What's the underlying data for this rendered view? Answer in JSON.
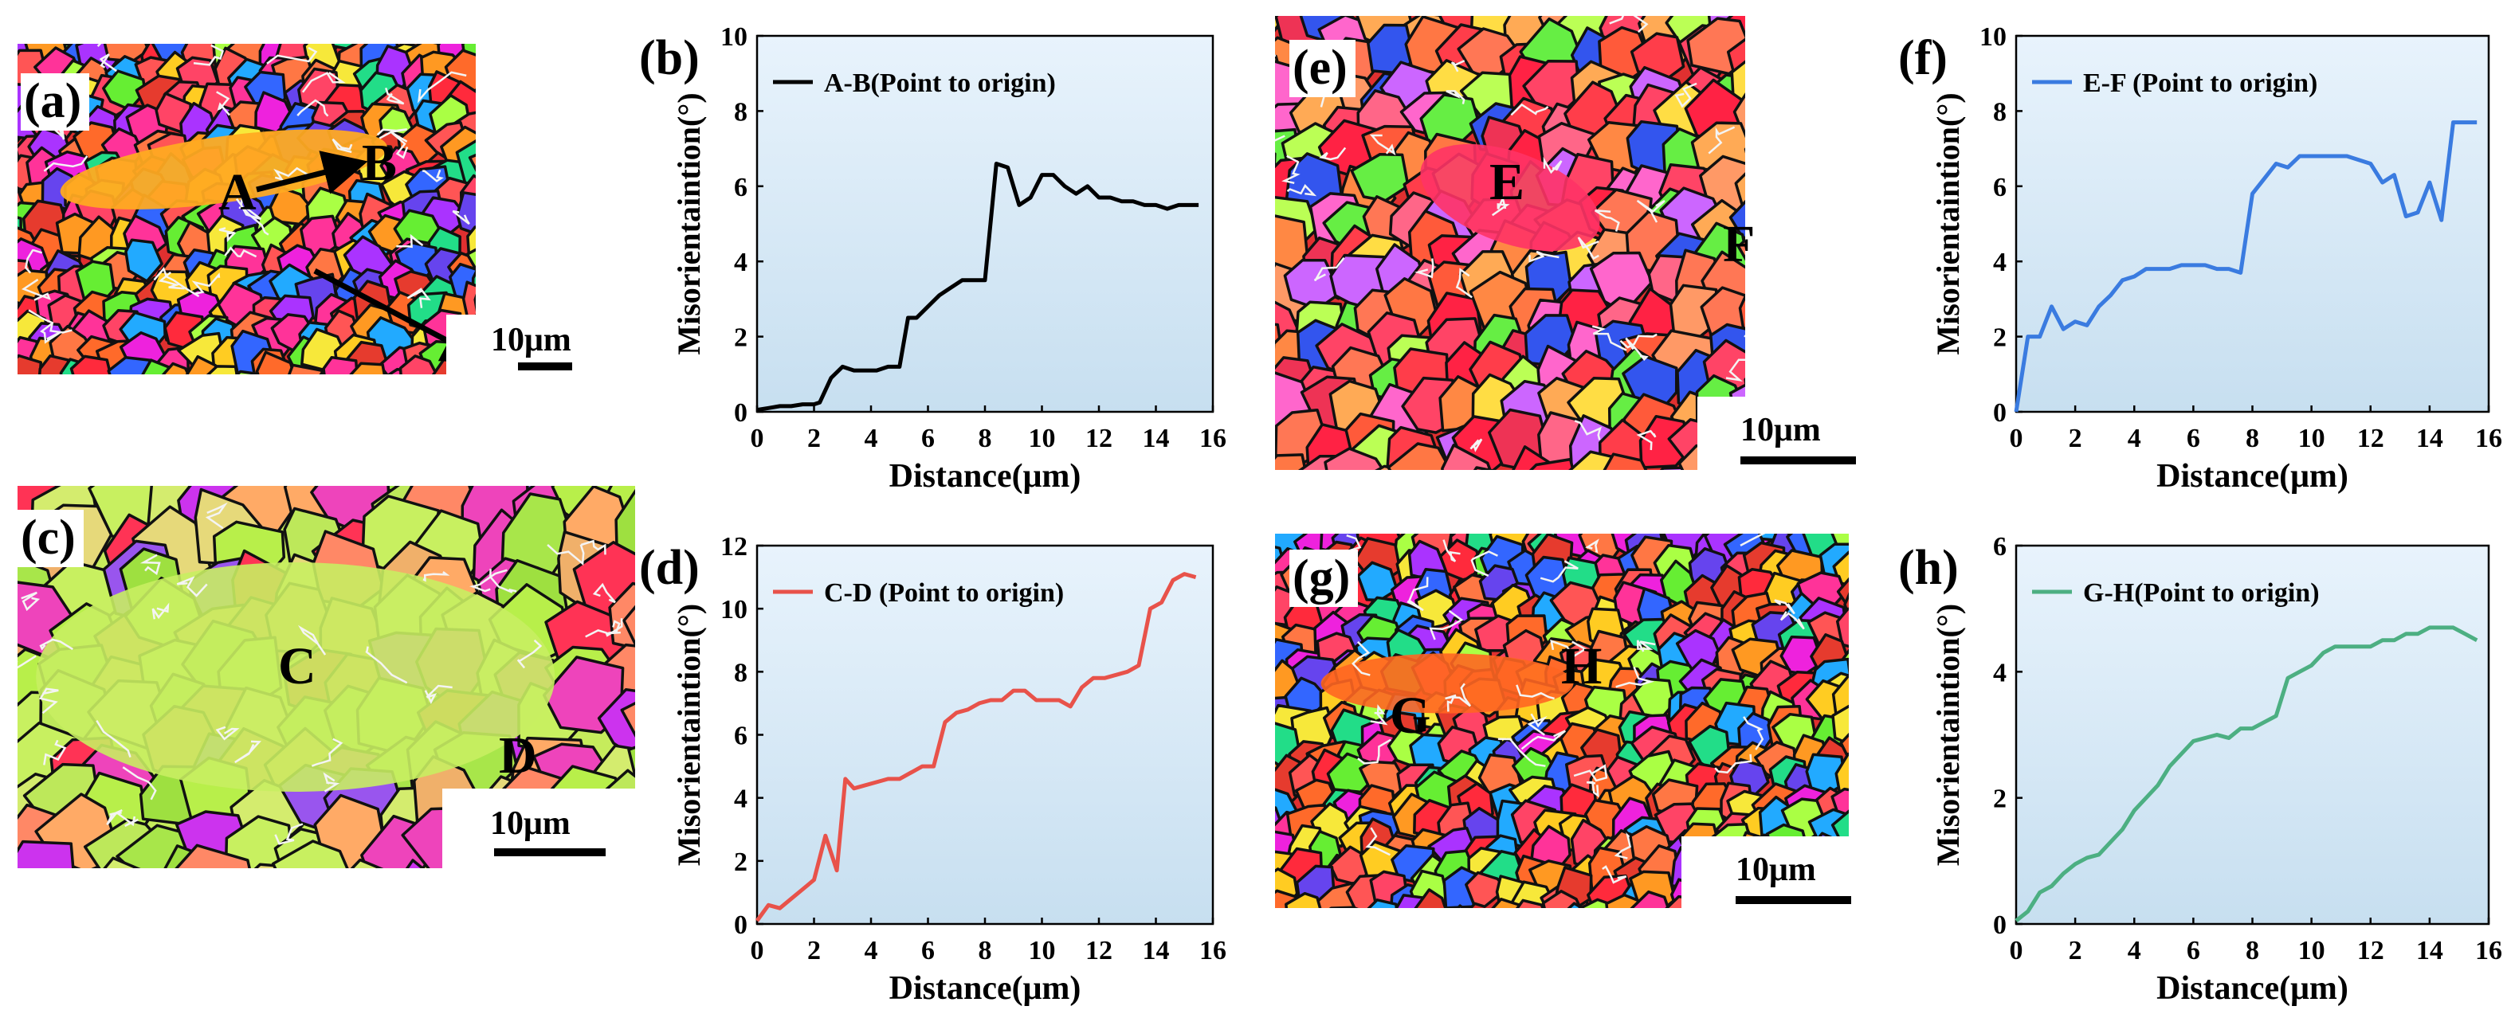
{
  "maps": [
    {
      "id": "a",
      "panel_label": "(a)",
      "scalebar": "10μm",
      "point_start": "A",
      "point_end": "B"
    },
    {
      "id": "c",
      "panel_label": "(c)",
      "scalebar": "10μm",
      "point_start": "C",
      "point_end": "D"
    },
    {
      "id": "e",
      "panel_label": "(e)",
      "scalebar": "10μm",
      "point_start": "E",
      "point_end": "F"
    },
    {
      "id": "g",
      "panel_label": "(g)",
      "scalebar": "10μm",
      "point_start": "G",
      "point_end": "H"
    }
  ],
  "chart_data": [
    {
      "id": "b",
      "panel_label": "(b)",
      "type": "line",
      "legend": "A-B(Point to origin)",
      "color": "#000000",
      "xlabel": "Distance(μm)",
      "ylabel": "Misorientaintion(°)",
      "xlim": [
        0,
        16
      ],
      "ylim": [
        0,
        10
      ],
      "xticks": [
        0,
        2,
        4,
        6,
        8,
        10,
        12,
        14,
        16
      ],
      "yticks": [
        0,
        2,
        4,
        6,
        8,
        10
      ],
      "x": [
        0,
        0.4,
        0.8,
        1.2,
        1.6,
        2.0,
        2.2,
        2.6,
        3.0,
        3.4,
        3.8,
        4.2,
        4.6,
        5.0,
        5.3,
        5.6,
        6.0,
        6.4,
        6.8,
        7.2,
        7.6,
        8.0,
        8.4,
        8.8,
        9.2,
        9.6,
        10.0,
        10.4,
        10.8,
        11.2,
        11.6,
        12.0,
        12.4,
        12.8,
        13.2,
        13.6,
        14.0,
        14.4,
        14.8,
        15.2,
        15.5
      ],
      "y": [
        0.05,
        0.1,
        0.15,
        0.15,
        0.2,
        0.2,
        0.25,
        0.9,
        1.2,
        1.1,
        1.1,
        1.1,
        1.2,
        1.2,
        2.5,
        2.5,
        2.8,
        3.1,
        3.3,
        3.5,
        3.5,
        3.5,
        6.6,
        6.5,
        5.5,
        5.7,
        6.3,
        6.3,
        6.0,
        5.8,
        6.0,
        5.7,
        5.7,
        5.6,
        5.6,
        5.5,
        5.5,
        5.4,
        5.5,
        5.5,
        5.5
      ]
    },
    {
      "id": "d",
      "panel_label": "(d)",
      "type": "line",
      "legend": "C-D (Point to origin)",
      "color": "#e8524a",
      "xlabel": "Distance(μm)",
      "ylabel": "Misorientaintion(°)",
      "xlim": [
        0,
        16
      ],
      "ylim": [
        0,
        12
      ],
      "xticks": [
        0,
        2,
        4,
        6,
        8,
        10,
        12,
        14,
        16
      ],
      "yticks": [
        0,
        2,
        4,
        6,
        8,
        10,
        12
      ],
      "x": [
        0,
        0.4,
        0.8,
        1.2,
        1.6,
        2.0,
        2.4,
        2.8,
        3.1,
        3.4,
        3.8,
        4.2,
        4.6,
        5.0,
        5.4,
        5.8,
        6.2,
        6.6,
        7.0,
        7.4,
        7.8,
        8.2,
        8.6,
        9.0,
        9.4,
        9.8,
        10.2,
        10.6,
        11.0,
        11.4,
        11.8,
        12.2,
        12.6,
        13.0,
        13.4,
        13.8,
        14.2,
        14.6,
        15.0,
        15.4
      ],
      "y": [
        0.1,
        0.6,
        0.5,
        0.8,
        1.1,
        1.4,
        2.8,
        1.7,
        4.6,
        4.3,
        4.4,
        4.5,
        4.6,
        4.6,
        4.8,
        5.0,
        5.0,
        6.4,
        6.7,
        6.8,
        7.0,
        7.1,
        7.1,
        7.4,
        7.4,
        7.1,
        7.1,
        7.1,
        6.9,
        7.5,
        7.8,
        7.8,
        7.9,
        8.0,
        8.2,
        10.0,
        10.2,
        10.9,
        11.1,
        11.0
      ]
    },
    {
      "id": "f",
      "panel_label": "(f)",
      "type": "line",
      "legend": "E-F (Point to origin)",
      "color": "#3a7be0",
      "xlabel": "Distance(μm)",
      "ylabel": "Misorientaintion(°)",
      "xlim": [
        0,
        16
      ],
      "ylim": [
        0,
        10
      ],
      "xticks": [
        0,
        2,
        4,
        6,
        8,
        10,
        12,
        14,
        16
      ],
      "yticks": [
        0,
        2,
        4,
        6,
        8,
        10
      ],
      "x": [
        0,
        0.4,
        0.8,
        1.2,
        1.6,
        2.0,
        2.4,
        2.8,
        3.2,
        3.6,
        4.0,
        4.4,
        4.8,
        5.2,
        5.6,
        6.0,
        6.4,
        6.8,
        7.2,
        7.6,
        8.0,
        8.4,
        8.8,
        9.2,
        9.6,
        10.0,
        10.4,
        10.8,
        11.2,
        11.6,
        12.0,
        12.4,
        12.8,
        13.2,
        13.6,
        14.0,
        14.4,
        14.8,
        15.2,
        15.6
      ],
      "y": [
        0,
        2.0,
        2.0,
        2.8,
        2.2,
        2.4,
        2.3,
        2.8,
        3.1,
        3.5,
        3.6,
        3.8,
        3.8,
        3.8,
        3.9,
        3.9,
        3.9,
        3.8,
        3.8,
        3.7,
        5.8,
        6.2,
        6.6,
        6.5,
        6.8,
        6.8,
        6.8,
        6.8,
        6.8,
        6.7,
        6.6,
        6.1,
        6.3,
        5.2,
        5.3,
        6.1,
        5.1,
        7.7,
        7.7,
        7.7
      ]
    },
    {
      "id": "h",
      "panel_label": "(h)",
      "type": "line",
      "legend": "G-H(Point to origin)",
      "color": "#4caf82",
      "xlabel": "Distance(μm)",
      "ylabel": "Misorientaintion(°)",
      "xlim": [
        0,
        16
      ],
      "ylim": [
        0,
        6
      ],
      "xticks": [
        0,
        2,
        4,
        6,
        8,
        10,
        12,
        14,
        16
      ],
      "yticks": [
        0,
        2,
        4,
        6
      ],
      "x": [
        0,
        0.4,
        0.8,
        1.2,
        1.6,
        2.0,
        2.4,
        2.8,
        3.2,
        3.6,
        4.0,
        4.4,
        4.8,
        5.2,
        5.6,
        6.0,
        6.4,
        6.8,
        7.2,
        7.6,
        8.0,
        8.4,
        8.8,
        9.2,
        9.6,
        10.0,
        10.4,
        10.8,
        11.2,
        11.6,
        12.0,
        12.4,
        12.8,
        13.2,
        13.6,
        14.0,
        14.4,
        14.8,
        15.2,
        15.6
      ],
      "y": [
        0.05,
        0.2,
        0.5,
        0.6,
        0.8,
        0.95,
        1.05,
        1.1,
        1.3,
        1.5,
        1.8,
        2.0,
        2.2,
        2.5,
        2.7,
        2.9,
        2.95,
        3.0,
        2.95,
        3.1,
        3.1,
        3.2,
        3.3,
        3.9,
        4.0,
        4.1,
        4.3,
        4.4,
        4.4,
        4.4,
        4.4,
        4.5,
        4.5,
        4.6,
        4.6,
        4.7,
        4.7,
        4.7,
        4.6,
        4.5
      ]
    }
  ]
}
